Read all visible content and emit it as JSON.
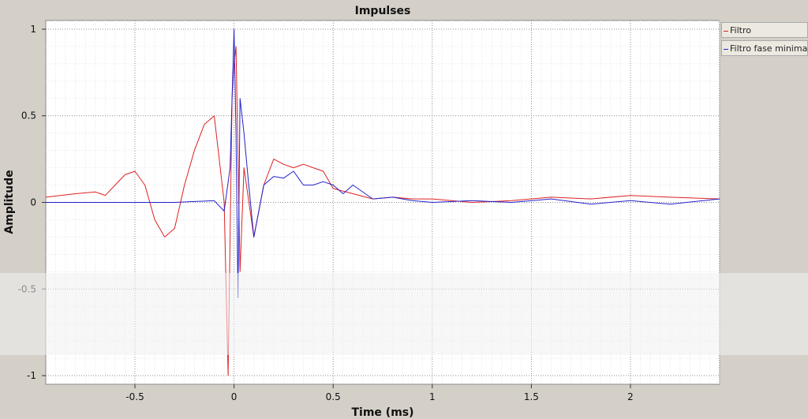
{
  "chart_data": {
    "type": "line",
    "title": "Impulses",
    "xlabel": "Time (ms)",
    "ylabel": "Amplitude",
    "xlim": [
      -0.95,
      2.45
    ],
    "ylim": [
      -1.05,
      1.05
    ],
    "x_ticks": [
      -0.5,
      0,
      0.5,
      1,
      1.5,
      2
    ],
    "x_tick_labels": [
      "-0.5",
      "0",
      "0.5",
      "1",
      "1.5",
      "2"
    ],
    "y_ticks": [
      -1,
      -0.5,
      0,
      0.5,
      1
    ],
    "y_tick_labels": [
      "-1",
      "-0.5",
      "0",
      "0.5",
      "1"
    ],
    "grid": true,
    "legend_position": "right",
    "series": [
      {
        "name": "Filtro",
        "color": "#dd2222",
        "x": [
          -0.95,
          -0.8,
          -0.7,
          -0.65,
          -0.6,
          -0.55,
          -0.5,
          -0.45,
          -0.4,
          -0.35,
          -0.3,
          -0.25,
          -0.2,
          -0.15,
          -0.1,
          -0.05,
          -0.03,
          -0.01,
          0.0,
          0.01,
          0.03,
          0.05,
          0.1,
          0.15,
          0.2,
          0.25,
          0.3,
          0.35,
          0.4,
          0.45,
          0.5,
          0.6,
          0.7,
          0.8,
          0.9,
          1.0,
          1.2,
          1.4,
          1.6,
          1.8,
          2.0,
          2.2,
          2.45
        ],
        "y": [
          0.03,
          0.05,
          0.06,
          0.04,
          0.1,
          0.16,
          0.18,
          0.1,
          -0.1,
          -0.2,
          -0.15,
          0.1,
          0.3,
          0.45,
          0.5,
          0.0,
          -1.0,
          0.6,
          0.8,
          0.9,
          -0.4,
          0.2,
          -0.2,
          0.1,
          0.25,
          0.22,
          0.2,
          0.22,
          0.2,
          0.18,
          0.08,
          0.05,
          0.02,
          0.03,
          0.02,
          0.02,
          0.0,
          0.01,
          0.03,
          0.02,
          0.04,
          0.03,
          0.02
        ]
      },
      {
        "name": "Filtro fase minima",
        "color": "#2222cc",
        "x": [
          -0.95,
          -0.6,
          -0.3,
          -0.1,
          -0.05,
          -0.02,
          0.0,
          0.01,
          0.02,
          0.03,
          0.05,
          0.07,
          0.1,
          0.15,
          0.2,
          0.25,
          0.3,
          0.35,
          0.4,
          0.45,
          0.5,
          0.55,
          0.6,
          0.7,
          0.8,
          0.9,
          1.0,
          1.2,
          1.4,
          1.6,
          1.8,
          2.0,
          2.2,
          2.45
        ],
        "y": [
          0.0,
          0.0,
          0.0,
          0.01,
          -0.05,
          0.2,
          1.0,
          0.4,
          -0.55,
          0.6,
          0.4,
          0.15,
          -0.2,
          0.1,
          0.15,
          0.14,
          0.18,
          0.1,
          0.1,
          0.12,
          0.1,
          0.05,
          0.1,
          0.02,
          0.03,
          0.01,
          0.0,
          0.01,
          0.0,
          0.02,
          -0.01,
          0.01,
          -0.01,
          0.02
        ]
      }
    ]
  }
}
